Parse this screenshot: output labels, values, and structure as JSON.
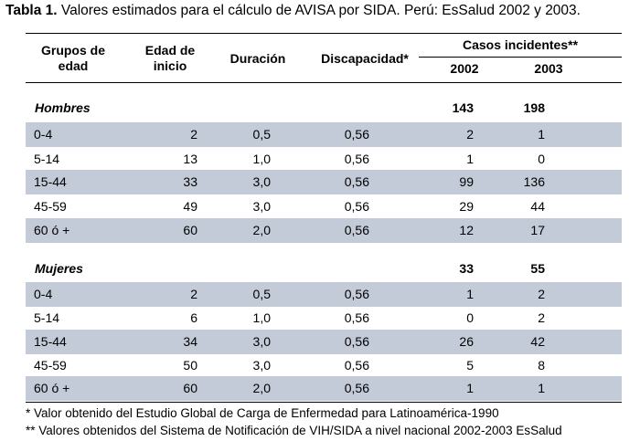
{
  "table": {
    "title_bold": "Tabla 1.",
    "title_rest": "Valores estimados para el cálculo de AVISA por SIDA. Perú: EsSalud 2002 y 2003.",
    "headers": {
      "grupos_line1": "Grupos de",
      "grupos_line2": "edad",
      "edad_line1": "Edad de",
      "edad_line2": "inicio",
      "duracion": "Duración",
      "discapacidad": "Discapacidad*",
      "casos": "Casos incidentes**",
      "year1": "2002",
      "year2": "2003"
    },
    "sections": [
      {
        "label": "Hombres",
        "total_2002": "143",
        "total_2003": "198",
        "rows": [
          {
            "grupo": "0-4",
            "edad": "2",
            "duracion": "0,5",
            "discapacidad": "0,56",
            "c2002": "2",
            "c2003": "1"
          },
          {
            "grupo": "5-14",
            "edad": "13",
            "duracion": "1,0",
            "discapacidad": "0,56",
            "c2002": "1",
            "c2003": "0"
          },
          {
            "grupo": "15-44",
            "edad": "33",
            "duracion": "3,0",
            "discapacidad": "0,56",
            "c2002": "99",
            "c2003": "136"
          },
          {
            "grupo": "45-59",
            "edad": "49",
            "duracion": "3,0",
            "discapacidad": "0,56",
            "c2002": "29",
            "c2003": "44"
          },
          {
            "grupo": "60 ó +",
            "edad": "60",
            "duracion": "2,0",
            "discapacidad": "0,56",
            "c2002": "12",
            "c2003": "17"
          }
        ]
      },
      {
        "label": "Mujeres",
        "total_2002": "33",
        "total_2003": "55",
        "rows": [
          {
            "grupo": "0-4",
            "edad": "2",
            "duracion": "0,5",
            "discapacidad": "0,56",
            "c2002": "1",
            "c2003": "2"
          },
          {
            "grupo": "5-14",
            "edad": "6",
            "duracion": "1,0",
            "discapacidad": "0,56",
            "c2002": "0",
            "c2003": "2"
          },
          {
            "grupo": "15-44",
            "edad": "34",
            "duracion": "3,0",
            "discapacidad": "0,56",
            "c2002": "26",
            "c2003": "42"
          },
          {
            "grupo": "45-59",
            "edad": "50",
            "duracion": "3,0",
            "discapacidad": "0,56",
            "c2002": "5",
            "c2003": "8"
          },
          {
            "grupo": "60 ó +",
            "edad": "60",
            "duracion": "2,0",
            "discapacidad": "0,56",
            "c2002": "1",
            "c2003": "1"
          }
        ]
      }
    ],
    "footnotes": [
      "* Valor obtenido del Estudio Global de Carga de Enfermedad para Latinoamérica-1990",
      "** Valores obtenidos del Sistema de Notificación de VIH/SIDA a nivel nacional 2002-2003 EsSalud"
    ]
  }
}
